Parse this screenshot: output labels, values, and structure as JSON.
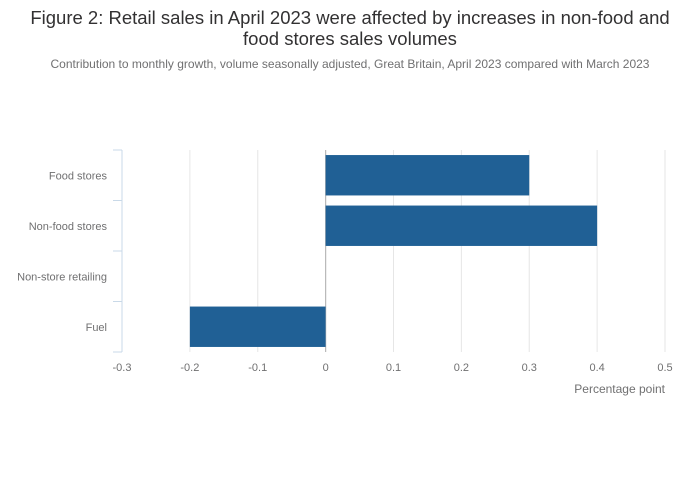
{
  "chart_data": {
    "type": "bar",
    "orientation": "horizontal",
    "title": "Figure 2: Retail sales in April 2023 were affected by increases in non-food and food stores sales volumes",
    "subtitle": "Contribution to monthly growth, volume seasonally adjusted, Great Britain, April 2023 compared with March 2023",
    "categories": [
      "Food stores",
      "Non-food stores",
      "Non-store retailing",
      "Fuel"
    ],
    "values": [
      0.3,
      0.4,
      0,
      -0.2
    ],
    "xlabel": "Percentage point",
    "ylabel": "",
    "xlim": [
      -0.3,
      0.5
    ],
    "xticks": [
      -0.3,
      -0.2,
      -0.1,
      0,
      0.1,
      0.2,
      0.3,
      0.4,
      0.5
    ],
    "xtick_labels": [
      "-0.3",
      "-0.2",
      "-0.1",
      "0",
      "0.1",
      "0.2",
      "0.3",
      "0.4",
      "0.5"
    ],
    "grid": true,
    "bar_color": "#206095"
  }
}
